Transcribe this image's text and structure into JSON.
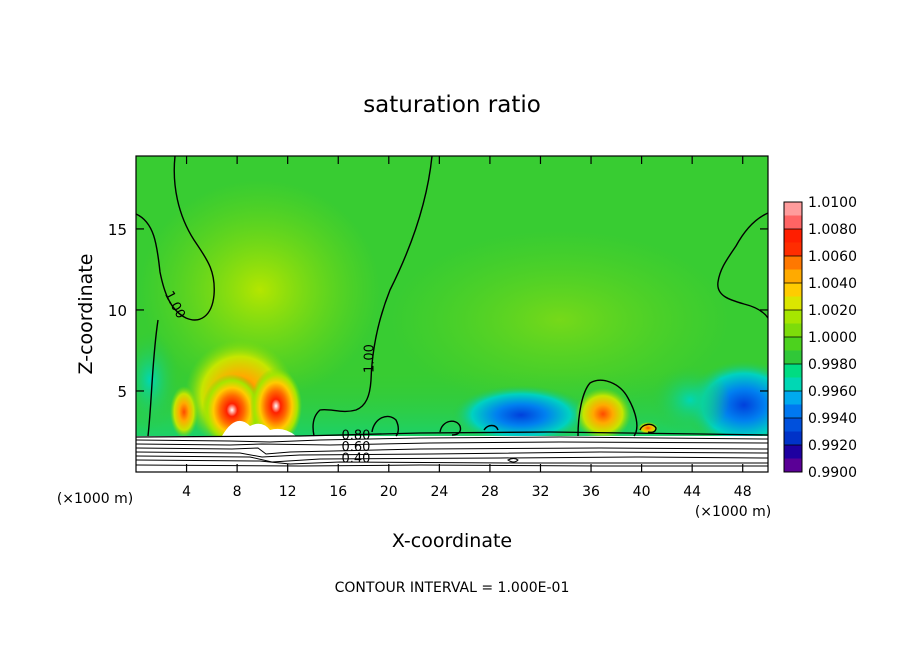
{
  "chart_data": {
    "type": "heatmap",
    "title": "saturation ratio",
    "xlabel": "X-coordinate",
    "ylabel": "Z-coordinate",
    "x_unit_left": "(×1000 m)",
    "x_unit_right": "(×1000 m)",
    "xlim": [
      0,
      50
    ],
    "ylim": [
      0,
      19.5
    ],
    "xticks": [
      4,
      8,
      12,
      16,
      20,
      24,
      28,
      32,
      36,
      40,
      44,
      48
    ],
    "yticks": [
      5,
      10,
      15
    ],
    "footer": "CONTOUR INTERVAL = 1.000E-01",
    "colorbar": {
      "labels": [
        "1.0100",
        "1.0080",
        "1.0060",
        "1.0040",
        "1.0020",
        "1.0000",
        "0.9980",
        "0.9960",
        "0.9940",
        "0.9920",
        "0.9900"
      ],
      "colors": [
        "#ff9c9c",
        "#ff6464",
        "#ff1e00",
        "#ff2d00",
        "#ff7800",
        "#ffaa00",
        "#ffcc00",
        "#dbe600",
        "#a6e600",
        "#7ddc0a",
        "#4cd21e",
        "#30c838",
        "#00dc82",
        "#00d7b4",
        "#00aaee",
        "#0078f0",
        "#0050dc",
        "#0032c8",
        "#1e00a0",
        "#5a0096"
      ]
    },
    "contour_labels": [
      {
        "text": "1.00",
        "x": 2.8,
        "z": 10.2,
        "angle": 62
      },
      {
        "text": "1.00",
        "x": 18.8,
        "z": 7.0,
        "angle": -90
      },
      {
        "text": "0.80",
        "x": 17.4,
        "z": 2.0,
        "angle": 0
      },
      {
        "text": "0.60",
        "x": 17.4,
        "z": 1.3,
        "angle": 0
      },
      {
        "text": "0.40",
        "x": 17.4,
        "z": 0.6,
        "angle": 0
      }
    ],
    "features": {
      "high_maxima": [
        [
          9.0,
          3.8
        ],
        [
          11.5,
          4.0
        ],
        [
          37.0,
          3.5
        ]
      ],
      "low_minima": [
        [
          30.5,
          3.0
        ],
        [
          46.5,
          4.0
        ]
      ]
    }
  }
}
